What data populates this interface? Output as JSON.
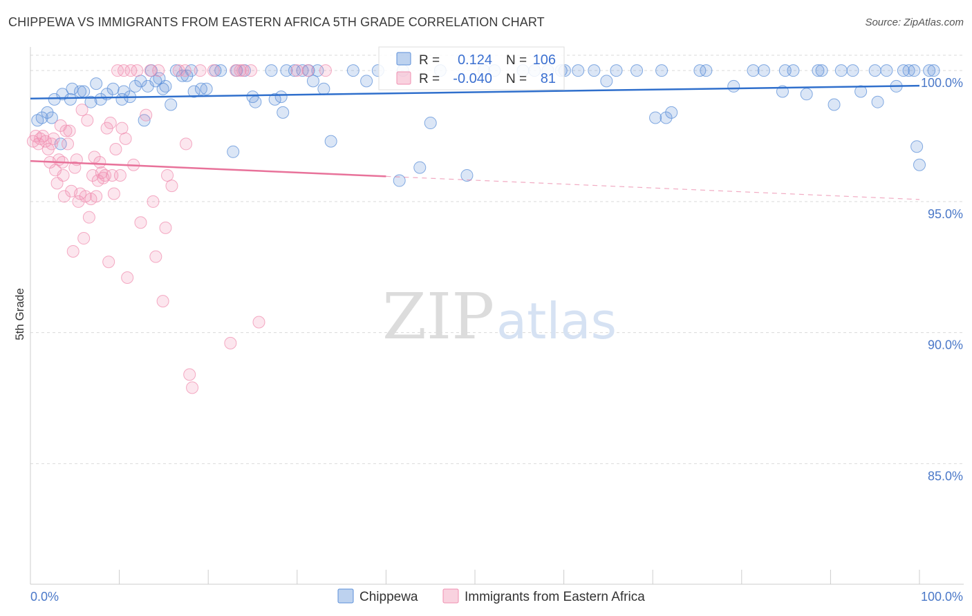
{
  "header": {
    "title": "CHIPPEWA VS IMMIGRANTS FROM EASTERN AFRICA 5TH GRADE CORRELATION CHART",
    "source": "Source: ZipAtlas.com"
  },
  "watermark": {
    "zip": "ZIP",
    "atlas": "atlas"
  },
  "colors": {
    "chippewa": "#5b8fd8",
    "chippewa_line": "#2f6fcc",
    "immigrants": "#f08fb0",
    "immigrants_line": "#e8729a",
    "tick_label": "#4a78c8",
    "grid": "#d9d9d9"
  },
  "legend_stats": {
    "r_label": "R =",
    "n_label": "N =",
    "chippewa": {
      "r": "0.124",
      "n": "106"
    },
    "immigrants": {
      "r": "-0.040",
      "n": "81"
    }
  },
  "chart_data": {
    "type": "scatter",
    "title": "CHIPPEWA VS IMMIGRANTS FROM EASTERN AFRICA 5TH GRADE CORRELATION CHART",
    "xlabel": "",
    "ylabel": "5th Grade",
    "xlim": [
      0,
      100
    ],
    "ylim": [
      80.4,
      100.9
    ],
    "x_ticks": [
      0,
      10,
      20,
      30,
      40,
      50,
      60,
      70,
      80,
      90,
      100
    ],
    "x_tick_labels": {
      "left": "0.0%",
      "right": "100.0%"
    },
    "y_ticks": [
      {
        "value": 100,
        "label": "100.0%"
      },
      {
        "value": 95,
        "label": "95.0%"
      },
      {
        "value": 90,
        "label": "90.0%"
      },
      {
        "value": 85,
        "label": "85.0%"
      }
    ],
    "grid": true,
    "legend_position": "bottom",
    "series": [
      {
        "name": "Chippewa",
        "trend": {
          "x": [
            0,
            100
          ],
          "y": [
            98.93,
            99.42
          ],
          "solid_until": 100
        },
        "points": [
          [
            0.8,
            98.1
          ],
          [
            1.3,
            98.2
          ],
          [
            1.9,
            98.4
          ],
          [
            2.4,
            98.2
          ],
          [
            2.7,
            98.9
          ],
          [
            3.4,
            97.2
          ],
          [
            3.6,
            99.1
          ],
          [
            4.5,
            98.9
          ],
          [
            4.7,
            99.3
          ],
          [
            5.6,
            99.2
          ],
          [
            6.0,
            99.2
          ],
          [
            6.8,
            98.8
          ],
          [
            7.4,
            99.5
          ],
          [
            7.9,
            98.9
          ],
          [
            8.6,
            99.1
          ],
          [
            9.3,
            99.3
          ],
          [
            10.3,
            98.9
          ],
          [
            10.5,
            99.2
          ],
          [
            11.2,
            99.0
          ],
          [
            11.8,
            99.4
          ],
          [
            12.4,
            99.6
          ],
          [
            12.8,
            98.1
          ],
          [
            13.2,
            99.4
          ],
          [
            13.6,
            100.0
          ],
          [
            14.1,
            99.6
          ],
          [
            14.5,
            99.7
          ],
          [
            14.9,
            99.3
          ],
          [
            15.2,
            99.4
          ],
          [
            15.8,
            98.7
          ],
          [
            16.4,
            100.0
          ],
          [
            17.1,
            99.8
          ],
          [
            17.6,
            99.8
          ],
          [
            18.1,
            100.0
          ],
          [
            18.4,
            99.2
          ],
          [
            19.2,
            99.3
          ],
          [
            19.8,
            99.3
          ],
          [
            20.8,
            100.0
          ],
          [
            21.4,
            100.0
          ],
          [
            22.8,
            96.9
          ],
          [
            23.2,
            100.0
          ],
          [
            24.1,
            100.0
          ],
          [
            25.0,
            99.0
          ],
          [
            25.3,
            98.8
          ],
          [
            27.1,
            100.0
          ],
          [
            27.5,
            98.9
          ],
          [
            28.2,
            99.0
          ],
          [
            28.4,
            98.4
          ],
          [
            28.8,
            100.0
          ],
          [
            29.7,
            100.0
          ],
          [
            30.6,
            100.0
          ],
          [
            31.3,
            100.0
          ],
          [
            31.8,
            99.6
          ],
          [
            32.3,
            100.0
          ],
          [
            33.0,
            99.3
          ],
          [
            33.8,
            97.3
          ],
          [
            36.3,
            100.0
          ],
          [
            37.8,
            99.6
          ],
          [
            39.1,
            100.0
          ],
          [
            41.5,
            95.8
          ],
          [
            41.9,
            100.0
          ],
          [
            43.8,
            96.3
          ],
          [
            45.0,
            98.0
          ],
          [
            46.1,
            100.0
          ],
          [
            49.1,
            96.0
          ],
          [
            51.0,
            100.0
          ],
          [
            52.2,
            100.0
          ],
          [
            55.4,
            100.0
          ],
          [
            56.7,
            100.0
          ],
          [
            58.2,
            100.0
          ],
          [
            59.7,
            100.0
          ],
          [
            60.1,
            100.0
          ],
          [
            61.6,
            100.0
          ],
          [
            63.4,
            100.0
          ],
          [
            64.8,
            99.6
          ],
          [
            65.9,
            100.0
          ],
          [
            68.2,
            100.0
          ],
          [
            70.3,
            98.2
          ],
          [
            71.5,
            98.2
          ],
          [
            72.1,
            98.4
          ],
          [
            71.0,
            100.0
          ],
          [
            75.3,
            100.0
          ],
          [
            76.0,
            100.0
          ],
          [
            79.1,
            99.4
          ],
          [
            81.3,
            100.0
          ],
          [
            82.5,
            100.0
          ],
          [
            84.6,
            99.2
          ],
          [
            84.9,
            100.0
          ],
          [
            85.8,
            100.0
          ],
          [
            87.3,
            99.1
          ],
          [
            88.6,
            100.0
          ],
          [
            89.0,
            100.0
          ],
          [
            90.4,
            98.7
          ],
          [
            91.2,
            100.0
          ],
          [
            92.5,
            100.0
          ],
          [
            93.4,
            99.2
          ],
          [
            95.0,
            100.0
          ],
          [
            95.3,
            98.8
          ],
          [
            96.3,
            100.0
          ],
          [
            97.4,
            99.4
          ],
          [
            98.2,
            100.0
          ],
          [
            98.8,
            100.0
          ],
          [
            99.4,
            100.0
          ],
          [
            99.7,
            97.1
          ],
          [
            100.0,
            96.4
          ],
          [
            101.1,
            100.0
          ],
          [
            101.6,
            100.0
          ]
        ]
      },
      {
        "name": "Immigrants from Eastern Africa",
        "trend": {
          "x": [
            0,
            100
          ],
          "y": [
            96.55,
            95.08
          ],
          "solid_until": 40
        },
        "points": [
          [
            0.3,
            97.3
          ],
          [
            0.6,
            97.5
          ],
          [
            0.9,
            97.2
          ],
          [
            1.1,
            97.4
          ],
          [
            1.4,
            97.5
          ],
          [
            1.7,
            97.3
          ],
          [
            2.0,
            97.0
          ],
          [
            2.2,
            96.5
          ],
          [
            2.4,
            97.2
          ],
          [
            2.6,
            97.4
          ],
          [
            2.8,
            96.2
          ],
          [
            3.0,
            95.7
          ],
          [
            3.2,
            96.6
          ],
          [
            3.4,
            97.9
          ],
          [
            3.6,
            96.5
          ],
          [
            3.7,
            96.0
          ],
          [
            3.8,
            95.2
          ],
          [
            4.0,
            97.7
          ],
          [
            4.2,
            97.2
          ],
          [
            4.4,
            97.7
          ],
          [
            4.6,
            95.4
          ],
          [
            4.8,
            93.1
          ],
          [
            5.0,
            96.3
          ],
          [
            5.2,
            96.6
          ],
          [
            5.4,
            95.0
          ],
          [
            5.6,
            95.3
          ],
          [
            5.8,
            98.5
          ],
          [
            6.0,
            93.6
          ],
          [
            6.2,
            95.2
          ],
          [
            6.4,
            98.1
          ],
          [
            6.6,
            94.4
          ],
          [
            6.8,
            95.1
          ],
          [
            7.0,
            96.0
          ],
          [
            7.2,
            96.7
          ],
          [
            7.4,
            95.2
          ],
          [
            7.6,
            95.8
          ],
          [
            7.8,
            96.5
          ],
          [
            8.0,
            96.1
          ],
          [
            8.2,
            95.9
          ],
          [
            8.4,
            96.0
          ],
          [
            8.6,
            97.8
          ],
          [
            8.8,
            92.7
          ],
          [
            9.0,
            98.0
          ],
          [
            9.2,
            96.0
          ],
          [
            9.4,
            95.3
          ],
          [
            9.6,
            97.0
          ],
          [
            9.8,
            100.0
          ],
          [
            10.1,
            96.0
          ],
          [
            10.3,
            97.8
          ],
          [
            10.5,
            100.0
          ],
          [
            10.7,
            97.4
          ],
          [
            10.9,
            92.1
          ],
          [
            11.3,
            100.0
          ],
          [
            11.6,
            96.4
          ],
          [
            12.0,
            100.0
          ],
          [
            12.4,
            94.2
          ],
          [
            13.0,
            98.3
          ],
          [
            13.5,
            100.0
          ],
          [
            13.8,
            95.0
          ],
          [
            14.1,
            92.9
          ],
          [
            14.4,
            100.0
          ],
          [
            14.9,
            91.2
          ],
          [
            15.2,
            94.0
          ],
          [
            15.4,
            96.0
          ],
          [
            15.9,
            95.6
          ],
          [
            16.7,
            100.0
          ],
          [
            17.4,
            100.0
          ],
          [
            17.5,
            97.2
          ],
          [
            17.9,
            88.4
          ],
          [
            18.2,
            87.9
          ],
          [
            19.1,
            100.0
          ],
          [
            20.6,
            100.0
          ],
          [
            22.5,
            89.6
          ],
          [
            23.1,
            100.0
          ],
          [
            23.6,
            100.0
          ],
          [
            23.9,
            100.0
          ],
          [
            24.8,
            100.0
          ],
          [
            25.7,
            90.4
          ],
          [
            30.0,
            100.0
          ],
          [
            31.2,
            100.0
          ],
          [
            33.2,
            100.0
          ]
        ]
      }
    ]
  }
}
